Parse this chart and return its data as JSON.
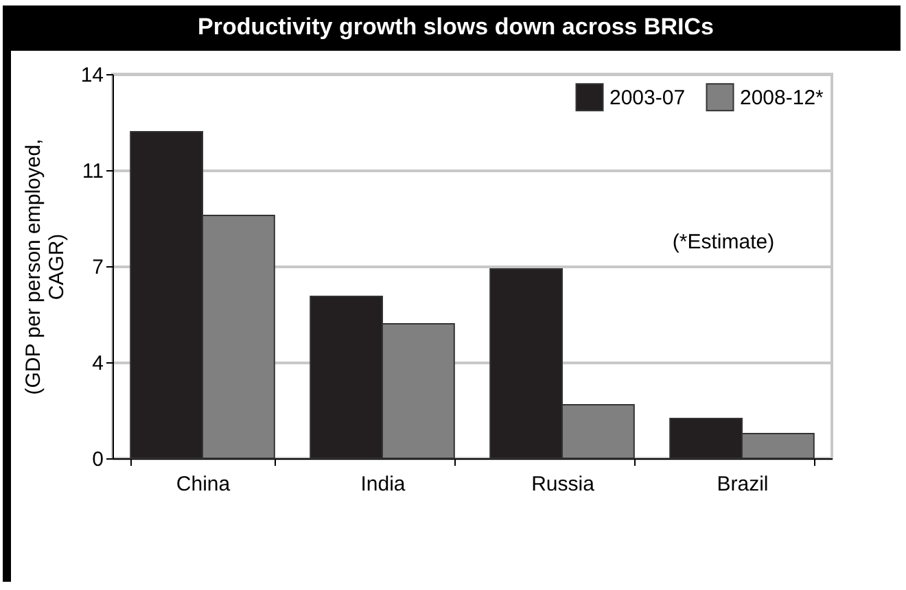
{
  "chart_data": {
    "type": "bar",
    "title": "Productivity growth slows down across BRICs",
    "ylabel": "(GDP per person employed, CAGR)",
    "categories": [
      "China",
      "India",
      "Russia",
      "Brazil"
    ],
    "series": [
      {
        "name": "2003-07",
        "color": "#231f20",
        "values": [
          11.9,
          5.9,
          6.9,
          1.45
        ]
      },
      {
        "name": "2008-12*",
        "color": "#808080",
        "values": [
          8.85,
          4.9,
          1.95,
          0.9
        ]
      }
    ],
    "ylim": [
      0,
      14
    ],
    "yticks": [
      0,
      {
        "value": 3.5,
        "label": "4"
      },
      7,
      {
        "value": 10.5,
        "label": "11"
      },
      14
    ],
    "grid": "y",
    "legend": "top right",
    "annotations": [
      "(*Estimate)"
    ]
  }
}
